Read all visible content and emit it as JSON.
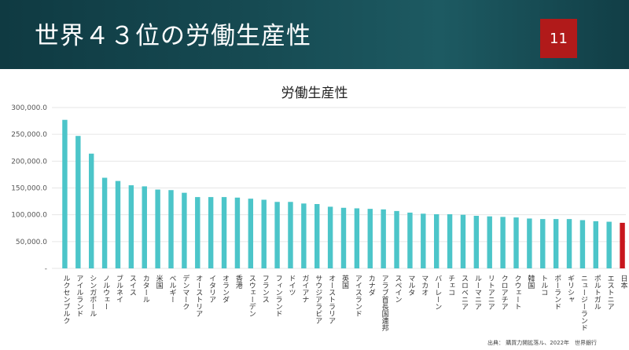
{
  "slide": {
    "title": "世界４３位の労働生産性",
    "page_number": "11",
    "source": "出典： 購買力開拡落ル、2022年　世界銀行"
  },
  "colors": {
    "header_bg": "#164a52",
    "bar": "#4cc5c9",
    "highlight_bar": "#c8161d",
    "page_badge": "#b11a1a"
  },
  "chart_data": {
    "type": "bar",
    "title": "労働生産性",
    "xlabel": "",
    "ylabel": "",
    "ylim": [
      0,
      300000
    ],
    "yticks": [
      "-",
      "50,000.0",
      "100,000.0",
      "150,000.0",
      "200,000.0",
      "250,000.0",
      "300,000.0"
    ],
    "grid": true,
    "legend": "none",
    "categories": [
      "ルクセンブルク",
      "アイルランド",
      "シンガポール",
      "ノルウェー",
      "ブルネイ",
      "スイス",
      "カタール",
      "米国",
      "ベルギー",
      "デンマーク",
      "オーストリア",
      "イタリア",
      "オランダ",
      "香港",
      "スウェーデン",
      "フランス",
      "フィンランド",
      "ドイツ",
      "ガイアナ",
      "サウジアラビア",
      "オーストラリア",
      "英国",
      "アイスランド",
      "カナダ",
      "アラブ首長国連邦",
      "スペイン",
      "マルタ",
      "マカオ",
      "バーレーン",
      "チェコ",
      "スロベニア",
      "ルーマニア",
      "リトアニア",
      "クロアチア",
      "クウェート",
      "韓国",
      "トルコ",
      "ポーランド",
      "ギリシャ",
      "ニュージーランド",
      "ポルトガル",
      "エストニア",
      "日本"
    ],
    "values": [
      277000,
      247000,
      214000,
      169000,
      163000,
      155000,
      153000,
      147000,
      146000,
      141000,
      133000,
      133000,
      133000,
      132000,
      130000,
      128000,
      124000,
      124000,
      121000,
      120000,
      115000,
      113000,
      112000,
      111000,
      110000,
      107000,
      104000,
      102000,
      101000,
      101000,
      100000,
      98000,
      97000,
      96000,
      95000,
      93000,
      92000,
      92000,
      92000,
      90000,
      88000,
      87000,
      85000
    ],
    "highlight": "日本"
  }
}
